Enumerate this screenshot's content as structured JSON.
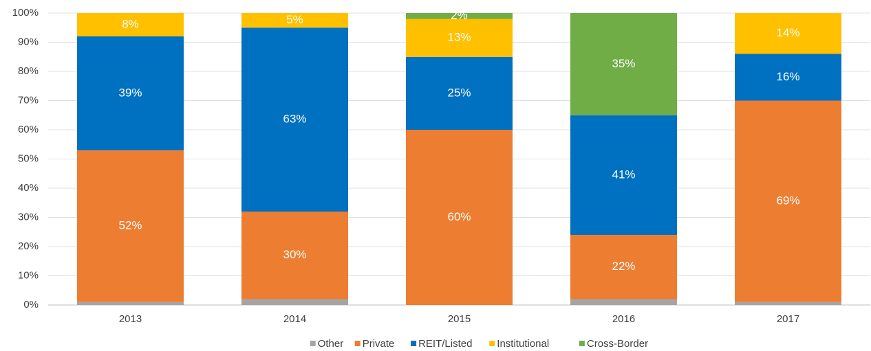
{
  "chart_data": {
    "type": "stacked_bar",
    "categories": [
      "2013",
      "2014",
      "2015",
      "2016",
      "2017"
    ],
    "series": [
      {
        "name": "Other",
        "color": "#a5a5a5",
        "values": [
          1,
          2,
          0,
          2,
          1
        ]
      },
      {
        "name": "Private",
        "color": "#ed7d31",
        "values": [
          52,
          30,
          60,
          22,
          69
        ],
        "value_labels": [
          "52%",
          "30%",
          "60%",
          "22%",
          "69%"
        ]
      },
      {
        "name": "REIT/Listed",
        "color": "#0070c0",
        "values": [
          39,
          63,
          25,
          41,
          16
        ],
        "value_labels": [
          "39%",
          "63%",
          "25%",
          "41%",
          "16%"
        ]
      },
      {
        "name": "Institutional",
        "color": "#ffc000",
        "values": [
          8,
          5,
          13,
          0,
          14
        ],
        "value_labels": [
          "8%",
          "5%",
          "13%",
          null,
          "14%"
        ]
      },
      {
        "name": "Cross-Border",
        "color": "#70ad47",
        "values": [
          0,
          0,
          2,
          35,
          0
        ],
        "value_labels": [
          null,
          null,
          "2%",
          "35%",
          null
        ]
      }
    ],
    "ylim": [
      0,
      100
    ],
    "yticks": [
      {
        "value": 0,
        "label": "0%"
      },
      {
        "value": 10,
        "label": "10%"
      },
      {
        "value": 20,
        "label": "20%"
      },
      {
        "value": 30,
        "label": "30%"
      },
      {
        "value": 40,
        "label": "40%"
      },
      {
        "value": 50,
        "label": "50%"
      },
      {
        "value": 60,
        "label": "60%"
      },
      {
        "value": 70,
        "label": "70%"
      },
      {
        "value": 80,
        "label": "80%"
      },
      {
        "value": 90,
        "label": "90%"
      },
      {
        "value": 100,
        "label": "100%"
      }
    ],
    "grid": true,
    "legend": "bottom"
  }
}
